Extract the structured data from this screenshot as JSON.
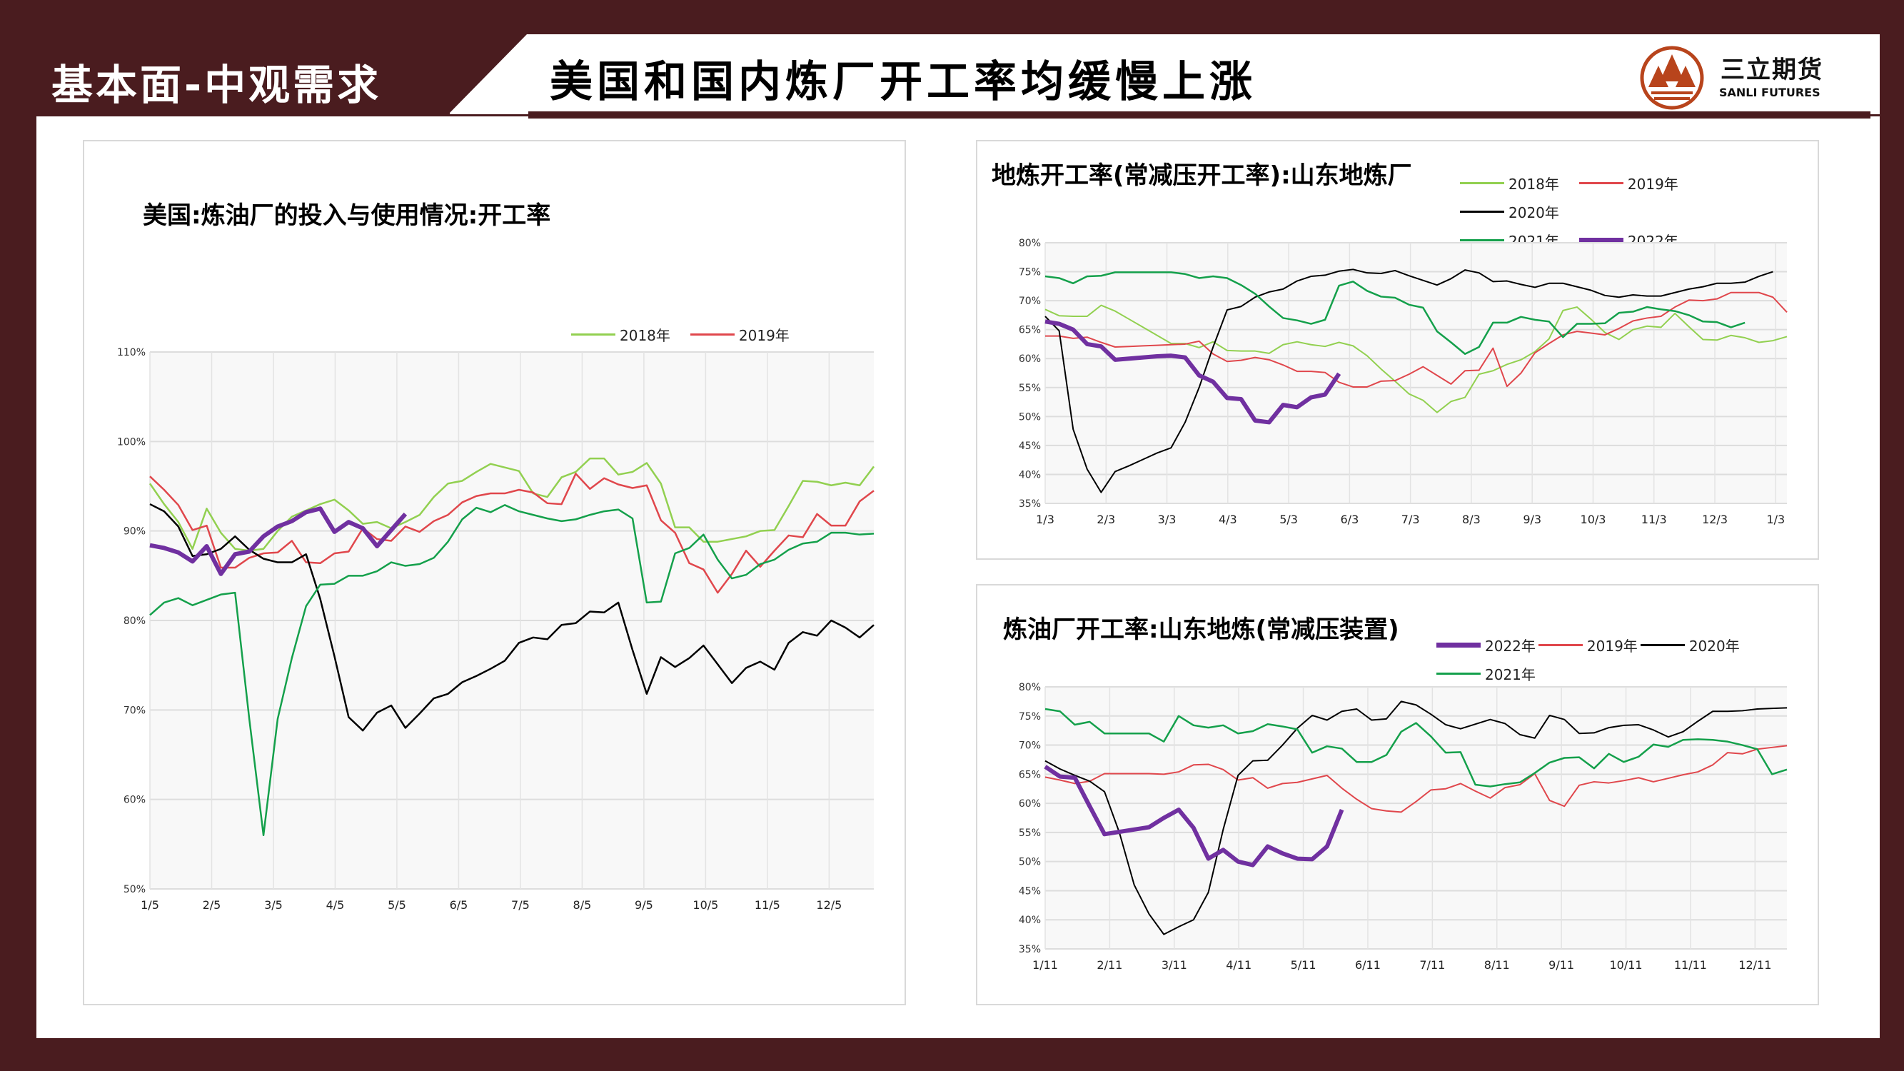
{
  "header": {
    "section_label": "基本面-中观需求",
    "title": "美国和国内炼厂开工率均缓慢上涨",
    "logo_cn": "三立期货",
    "logo_en": "SANLI FUTURES"
  },
  "colors": {
    "frame": "#4a1c1f",
    "s2018": "#92d050",
    "s2019": "#e0474c",
    "s2020": "#000000",
    "s2021": "#14a04b",
    "s2022": "#7030a0",
    "logo": "#b8441c"
  },
  "chart_data": [
    {
      "type": "line",
      "title": "美国:炼油厂的投入与使用情况:开工率",
      "ylim": [
        50,
        110
      ],
      "yticks": [
        50,
        60,
        70,
        80,
        90,
        100,
        110
      ],
      "ytick_labels": [
        "50%",
        "60%",
        "70%",
        "80%",
        "90%",
        "100%",
        "110%"
      ],
      "xlim": [
        0,
        51
      ],
      "xtick_positions": [
        0,
        4.35,
        8.7,
        13.05,
        17.4,
        21.75,
        26.1,
        30.45,
        34.8,
        39.15,
        43.5,
        47.85
      ],
      "xtick_labels": [
        "1/5",
        "2/5",
        "3/5",
        "4/5",
        "5/5",
        "6/5",
        "7/5",
        "8/5",
        "9/5",
        "10/5",
        "11/5",
        "12/5"
      ],
      "grid": true,
      "legend_position": "top-right",
      "series": [
        {
          "name": "2018年",
          "color": "#92d050",
          "width": 2.5,
          "values": [
            95.3,
            93,
            91,
            88,
            92.5,
            89.8,
            88,
            87.8,
            88,
            90,
            91.6,
            92.3,
            93,
            93.5,
            92.3,
            90.8,
            91,
            90.3,
            91,
            91.8,
            93.8,
            95.3,
            95.6,
            96.6,
            97.5,
            97.1,
            96.7,
            94.2,
            93.8,
            96,
            96.6,
            98.1,
            98.1,
            96.3,
            96.6,
            97.6,
            95.3,
            90.4,
            90.4,
            88.8,
            88.8,
            89.1,
            89.4,
            90,
            90.1,
            92.8,
            95.6,
            95.5,
            95.1,
            95.4,
            95.1,
            97.2
          ]
        },
        {
          "name": "2019年",
          "color": "#e0474c",
          "width": 2.5,
          "values": [
            96.1,
            94.6,
            92.9,
            90.1,
            90.6,
            85.9,
            85.9,
            87,
            87.5,
            87.6,
            88.9,
            86.5,
            86.4,
            87.5,
            87.7,
            90.3,
            89.1,
            88.9,
            90.5,
            89.9,
            91.1,
            91.8,
            93.2,
            93.9,
            94.2,
            94.2,
            94.6,
            94.3,
            93.1,
            93,
            96.4,
            94.7,
            95.9,
            95.2,
            94.8,
            95.1,
            91.2,
            89.8,
            86.4,
            85.7,
            83.1,
            85.2,
            87.8,
            86,
            87.8,
            89.5,
            89.3,
            91.9,
            90.6,
            90.6,
            93.3,
            94.5
          ]
        },
        {
          "name": "2020年",
          "color": "#000000",
          "width": 2.5,
          "values": [
            93,
            92.2,
            90.5,
            87.2,
            87.4,
            88,
            89.4,
            87.9,
            86.9,
            86.5,
            86.5,
            87.4,
            82.4,
            76,
            69.2,
            67.7,
            69.7,
            70.5,
            68,
            69.6,
            71.3,
            71.8,
            73.1,
            73.8,
            74.6,
            75.5,
            77.5,
            78.1,
            77.9,
            79.5,
            79.7,
            81,
            80.9,
            82,
            76.7,
            71.8,
            75.9,
            74.8,
            75.8,
            77.2,
            75.1,
            73,
            74.7,
            75.4,
            74.5,
            77.5,
            78.7,
            78.3,
            80,
            79.2,
            78.1,
            79.5
          ]
        },
        {
          "name": "2021年",
          "color": "#14a04b",
          "width": 2.5,
          "values": [
            80.6,
            82,
            82.5,
            81.7,
            82.3,
            82.9,
            83.1,
            69,
            56,
            69,
            75.8,
            81.6,
            84,
            84.1,
            85,
            85,
            85.5,
            86.5,
            86.1,
            86.3,
            87,
            88.8,
            91.3,
            92.6,
            92.1,
            92.9,
            92.2,
            91.8,
            91.4,
            91.1,
            91.3,
            91.8,
            92.2,
            92.4,
            91.4,
            82,
            82.1,
            87.5,
            88.1,
            89.6,
            86.8,
            84.7,
            85.1,
            86.3,
            86.8,
            87.9,
            88.6,
            88.8,
            89.8,
            89.8,
            89.6,
            89.7
          ]
        },
        {
          "name": "2022年",
          "color": "#7030a0",
          "width": 6,
          "values": [
            88.4,
            88.1,
            87.6,
            86.6,
            88.3,
            85.2,
            87.4,
            87.7,
            89.4,
            90.5,
            91.1,
            92.1,
            92.5,
            89.9,
            91,
            90.3,
            88.3,
            90.1,
            91.9
          ]
        }
      ]
    },
    {
      "type": "line",
      "title": "地炼开工率(常减压开工率):山东地炼厂",
      "ylim": [
        35,
        80
      ],
      "yticks": [
        35,
        40,
        45,
        50,
        55,
        60,
        65,
        70,
        75,
        80
      ],
      "ytick_labels": [
        "35%",
        "40%",
        "45%",
        "50%",
        "55%",
        "60%",
        "65%",
        "70%",
        "75%",
        "80%"
      ],
      "xlim": [
        0,
        53
      ],
      "xtick_positions": [
        0,
        4.35,
        8.7,
        13.05,
        17.4,
        21.75,
        26.1,
        30.45,
        34.8,
        39.15,
        43.5,
        47.85,
        52.2
      ],
      "xtick_labels": [
        "1/3",
        "2/3",
        "3/3",
        "4/3",
        "5/3",
        "6/3",
        "7/3",
        "8/3",
        "9/3",
        "10/3",
        "11/3",
        "12/3",
        "1/3"
      ],
      "grid": true,
      "legend_position": "top-right",
      "series": [
        {
          "name": "2018年",
          "color": "#92d050",
          "width": 2,
          "values": [
            68.5,
            67.4,
            67.3,
            67.3,
            69.2,
            68.2,
            66.8,
            65.4,
            64,
            62.6,
            62.6,
            61.9,
            62.9,
            61.4,
            61.3,
            61.3,
            60.9,
            62.4,
            62.9,
            62.4,
            62.1,
            62.8,
            62.2,
            60.5,
            58.2,
            56.1,
            53.9,
            52.8,
            50.7,
            52.6,
            53.3,
            57.3,
            57.9,
            59,
            59.8,
            61.2,
            63.4,
            68.3,
            68.9,
            66.8,
            64.5,
            63.3,
            65,
            65.6,
            65.4,
            67.8,
            65.5,
            63.3,
            63.2,
            64,
            63.6,
            62.8,
            63.1,
            63.8
          ]
        },
        {
          "name": "2019年",
          "color": "#e0474c",
          "width": 2,
          "values": [
            63.9,
            63.9,
            63.5,
            63.7,
            62.8,
            62,
            62.1,
            62.2,
            62.3,
            62.4,
            62.5,
            63,
            60.8,
            59.5,
            59.7,
            60.2,
            59.8,
            58.9,
            57.8,
            57.8,
            57.6,
            55.9,
            55.1,
            55.1,
            56.1,
            56.2,
            57.3,
            58.6,
            57.1,
            55.6,
            57.9,
            58,
            61.8,
            55.2,
            57.5,
            61,
            62.6,
            64.1,
            64.7,
            64.4,
            64.1,
            65.2,
            66.5,
            67,
            67.3,
            68.9,
            70.1,
            70,
            70.3,
            71.4,
            71.4,
            71.4,
            70.6,
            68
          ]
        },
        {
          "name": "2020年",
          "color": "#000000",
          "width": 2,
          "values": [
            67.3,
            64.8,
            47.8,
            40.9,
            36.9,
            40.5,
            41.5,
            42.6,
            43.7,
            44.6,
            49,
            55,
            62,
            68.4,
            69,
            70.6,
            71.5,
            72,
            73.4,
            74.2,
            74.4,
            75.1,
            75.4,
            74.8,
            74.7,
            75.2,
            74.3,
            73.5,
            72.7,
            73.8,
            75.3,
            74.8,
            73.3,
            73.4,
            72.8,
            72.3,
            73,
            73,
            72.4,
            71.8,
            70.9,
            70.6,
            71,
            70.8,
            70.8,
            71.4,
            72,
            72.4,
            73,
            73,
            73.2,
            74.2,
            75
          ]
        },
        {
          "name": "2021年",
          "color": "#14a04b",
          "width": 2.5,
          "values": [
            74.2,
            73.9,
            73,
            74.2,
            74.3,
            74.9,
            74.9,
            74.9,
            74.9,
            74.9,
            74.6,
            73.9,
            74.2,
            73.9,
            72.7,
            71.2,
            69,
            67,
            66.6,
            66,
            66.7,
            72.6,
            73.3,
            71.7,
            70.7,
            70.5,
            69.3,
            68.8,
            64.7,
            62.8,
            60.8,
            62,
            66.2,
            66.2,
            67.2,
            66.7,
            66.4,
            63.7,
            66,
            66,
            66.1,
            67.9,
            68.1,
            68.9,
            68.5,
            68.2,
            67.5,
            66.4,
            66.3,
            65.4,
            66.2
          ]
        },
        {
          "name": "2022年",
          "color": "#7030a0",
          "width": 6,
          "values": [
            66.4,
            66,
            65,
            62.5,
            62.1,
            59.8,
            60,
            60.2,
            60.4,
            60.5,
            60.2,
            57.1,
            56,
            53.2,
            53,
            49.3,
            49,
            52,
            51.6,
            53.3,
            53.8,
            57.4
          ]
        }
      ]
    },
    {
      "type": "line",
      "title": "炼油厂开工率:山东地炼(常减压装置)",
      "ylim": [
        35,
        80
      ],
      "yticks": [
        35,
        40,
        45,
        50,
        55,
        60,
        65,
        70,
        75,
        80
      ],
      "ytick_labels": [
        "35%",
        "40%",
        "45%",
        "50%",
        "55%",
        "60%",
        "65%",
        "70%",
        "75%",
        "80%"
      ],
      "xlim": [
        0,
        50
      ],
      "xtick_positions": [
        0,
        4.35,
        8.7,
        13.05,
        17.4,
        21.75,
        26.1,
        30.45,
        34.8,
        39.15,
        43.5,
        47.85
      ],
      "xtick_labels": [
        "1/11",
        "2/11",
        "3/11",
        "4/11",
        "5/11",
        "6/11",
        "7/11",
        "8/11",
        "9/11",
        "10/11",
        "11/11",
        "12/11"
      ],
      "grid": true,
      "legend_position": "top-right",
      "series": [
        {
          "name": "2022年",
          "color": "#7030a0",
          "width": 6,
          "values": [
            66.3,
            64.6,
            64.4,
            59.5,
            54.7,
            55.1,
            55.5,
            55.9,
            57.5,
            58.9,
            55.8,
            50.5,
            52,
            50,
            49.4,
            52.6,
            51.4,
            50.5,
            50.4,
            52.6,
            58.9
          ]
        },
        {
          "name": "2019年",
          "color": "#e0474c",
          "width": 2,
          "values": [
            64.5,
            64,
            63.4,
            63.8,
            65.1,
            65.1,
            65.1,
            65.1,
            65,
            65.4,
            66.6,
            66.7,
            65.8,
            64,
            64.4,
            62.6,
            63.4,
            63.6,
            64.2,
            64.8,
            62.6,
            60.7,
            59.1,
            58.7,
            58.5,
            60.3,
            62.3,
            62.5,
            63.4,
            62.1,
            60.9,
            62.7,
            63.2,
            65.1,
            60.5,
            59.5,
            63.1,
            63.7,
            63.5,
            63.9,
            64.4,
            63.7,
            64.3,
            64.9,
            65.4,
            66.6,
            68.7,
            68.5,
            69.3,
            69.6,
            69.9
          ]
        },
        {
          "name": "2020年",
          "color": "#000000",
          "width": 2,
          "values": [
            67.3,
            65.9,
            64.8,
            63.8,
            62,
            55,
            46,
            41,
            37.5,
            38.8,
            40,
            44.7,
            55.5,
            64.8,
            67.3,
            67.4,
            70,
            72.9,
            75.1,
            74.3,
            75.8,
            76.2,
            74.3,
            74.5,
            77.5,
            76.9,
            75.3,
            73.5,
            72.8,
            73.6,
            74.4,
            73.7,
            71.8,
            71.2,
            75.1,
            74.4,
            72,
            72.1,
            73,
            73.4,
            73.5,
            72.6,
            71.4,
            72.3,
            74.1,
            75.8,
            75.8,
            75.9,
            76.2,
            76.3,
            76.4
          ]
        },
        {
          "name": "2021年",
          "color": "#14a04b",
          "width": 2.5,
          "values": [
            76.2,
            75.8,
            73.5,
            74,
            72,
            72,
            72,
            72,
            70.6,
            75,
            73.4,
            73,
            73.4,
            72,
            72.4,
            73.6,
            73.2,
            72.7,
            68.7,
            69.8,
            69.4,
            67.1,
            67.1,
            68.3,
            72.3,
            73.8,
            71.5,
            68.7,
            68.8,
            63.2,
            62.9,
            63.3,
            63.6,
            65.2,
            67,
            67.8,
            67.9,
            66,
            68.5,
            67.1,
            68,
            70.1,
            69.7,
            70.9,
            71,
            70.9,
            70.6,
            70,
            69.3,
            65,
            65.8
          ]
        }
      ]
    }
  ]
}
